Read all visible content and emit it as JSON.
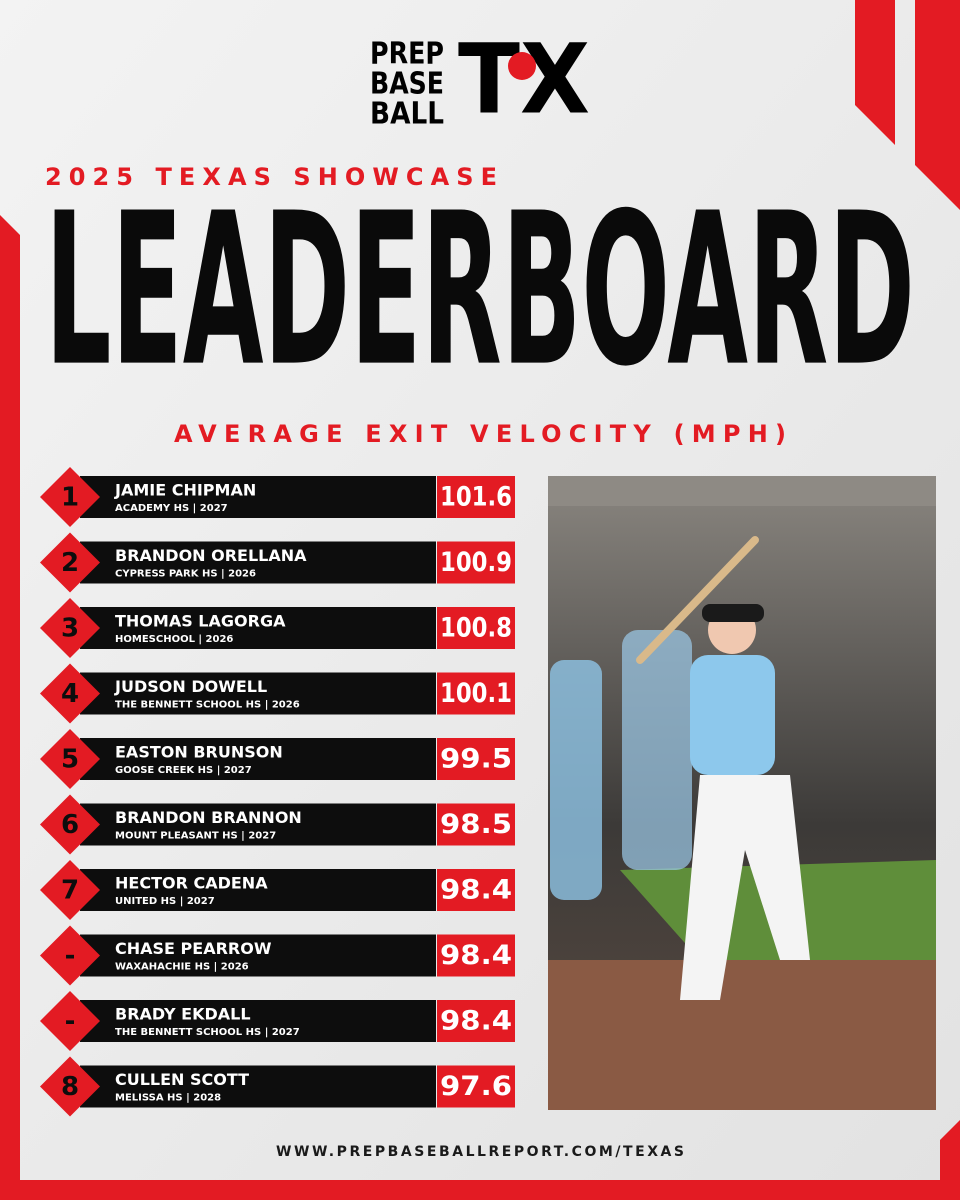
{
  "logo": {
    "lines": [
      "PREP",
      "BASE",
      "BALL"
    ],
    "mark": "TX"
  },
  "event": "2025 TEXAS SHOWCASE",
  "title": "LEADERBOARD",
  "metric": "AVERAGE EXIT VELOCITY (MPH)",
  "rows": [
    {
      "rank": "1",
      "name": "JAMIE CHIPMAN",
      "school": "ACADEMY HS | 2027",
      "value": "101.6"
    },
    {
      "rank": "2",
      "name": "BRANDON ORELLANA",
      "school": "CYPRESS PARK HS | 2026",
      "value": "100.9"
    },
    {
      "rank": "3",
      "name": "THOMAS LAGORGA",
      "school": "HOMESCHOOL | 2026",
      "value": "100.8"
    },
    {
      "rank": "4",
      "name": "JUDSON DOWELL",
      "school": "THE BENNETT SCHOOL HS | 2026",
      "value": "100.1"
    },
    {
      "rank": "5",
      "name": "EASTON BRUNSON",
      "school": "GOOSE CREEK HS | 2027",
      "value": "99.5"
    },
    {
      "rank": "6",
      "name": "BRANDON BRANNON",
      "school": "MOUNT PLEASANT HS | 2027",
      "value": "98.5"
    },
    {
      "rank": "7",
      "name": "HECTOR CADENA",
      "school": "UNITED HS | 2027",
      "value": "98.4"
    },
    {
      "rank": "-",
      "name": "CHASE PEARROW",
      "school": "WAXAHACHIE HS | 2026",
      "value": "98.4"
    },
    {
      "rank": "-",
      "name": "BRADY EKDALL",
      "school": "THE BENNETT SCHOOL HS | 2027",
      "value": "98.4"
    },
    {
      "rank": "8",
      "name": "CULLEN SCOTT",
      "school": "MELISSA HS | 2028",
      "value": "97.6"
    }
  ],
  "url": "WWW.PREPBASEBALLREPORT.COM/TEXAS"
}
